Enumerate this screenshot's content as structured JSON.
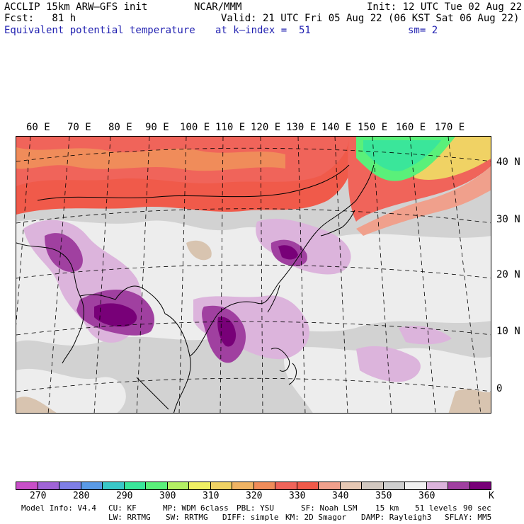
{
  "header": {
    "model": "ACCLIP 15km ARW–GFS init",
    "center": "NCAR/MMM",
    "init": "Init: 12 UTC Tue 02 Aug 22",
    "forecast": "Fcst:   81 h",
    "valid": "Valid: 21 UTC Fri 05 Aug 22 (06 KST Sat 06 Aug 22)",
    "field": "Equivalent potential temperature",
    "level": "at k–index =  51",
    "smoothing": "sm= 2"
  },
  "map": {
    "lon_labels": [
      "60 E",
      "70 E",
      "80 E",
      "90 E",
      "100 E",
      "110 E",
      "120 E",
      "130 E",
      "140 E",
      "150 E",
      "160 E",
      "170 E"
    ],
    "lat_labels": [
      "40 N",
      "30 N",
      "20 N",
      "10 N",
      "0"
    ]
  },
  "colorbar": {
    "unit": "K",
    "colors": [
      "#c84fc8",
      "#a064d6",
      "#7f7fe6",
      "#5a9ae6",
      "#3ac8c8",
      "#3ae69a",
      "#5af07a",
      "#b4f064",
      "#f0f064",
      "#f0d264",
      "#f0b464",
      "#f08c5a",
      "#f0645a",
      "#f05a4a",
      "#f0a08c",
      "#e6c8b4",
      "#d2c8c0",
      "#cfcfcf",
      "#f0f0f0",
      "#dcb4dc",
      "#a040a0",
      "#780078"
    ],
    "labels": [
      "270",
      "280",
      "290",
      "300",
      "310",
      "320",
      "330",
      "340",
      "350",
      "360"
    ]
  },
  "footer": {
    "line1": [
      "Model Info: V4.4",
      "CU: KF",
      "MP: WDM 6class",
      "PBL: YSU",
      "SF: Noah LSM",
      "15 km",
      "51 levels",
      "90 sec"
    ],
    "line2": [
      "LW: RRTMG",
      "SW: RRTMG",
      "DIFF: simple",
      "KM: 2D Smagor",
      "DAMP: Rayleigh3",
      "SFLAY: MM5"
    ]
  }
}
